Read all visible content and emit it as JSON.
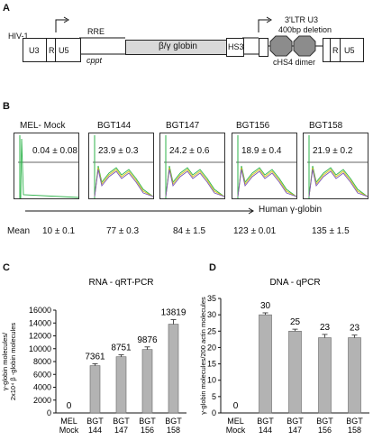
{
  "panels": {
    "a": "A",
    "b": "B",
    "c": "C",
    "d": "D"
  },
  "construct": {
    "hiv1": "HIV-1",
    "u3_left": "U3",
    "r_left": "R",
    "u5_left": "U5",
    "rre": "RRE",
    "cppt": "cppt",
    "globin": "β/γ globin",
    "hs3": "HS3",
    "ltr_line1": "3'LTR U3",
    "ltr_line2": "400bp deletion",
    "chs4": "cHS4 dimer",
    "r_right": "R",
    "u5_right": "U5"
  },
  "facs": {
    "samples": [
      {
        "name": "MEL- Mock",
        "value": "0.04 ± 0.08",
        "mean": "10 ± 0.1"
      },
      {
        "name": "BGT144",
        "value": "23.9 ± 0.3",
        "mean": "77 ± 0.3"
      },
      {
        "name": "BGT147",
        "value": "24.2 ± 0.6",
        "mean": "84 ± 1.5"
      },
      {
        "name": "BGT156",
        "value": "18.9 ± 0.4",
        "mean": "123 ± 0.01"
      },
      {
        "name": "BGT158",
        "value": "21.9 ± 0.2",
        "mean": "135 ± 1.5"
      }
    ],
    "axis_label": "Human γ-globin",
    "mean_label": "Mean"
  },
  "chart_data": [
    {
      "type": "bar",
      "title": "RNA - qRT-PCR",
      "ylabel_line1": "γ-globin molecules/",
      "ylabel_line2": "2x10⁴ β -globin molecules",
      "categories": [
        "MEL Mock",
        "BGT 144",
        "BGT 147",
        "BGT 156",
        "BGT 158"
      ],
      "category_lines": [
        [
          "MEL",
          "Mock"
        ],
        [
          "BGT",
          "144"
        ],
        [
          "BGT",
          "147"
        ],
        [
          "BGT",
          "156"
        ],
        [
          "BGT",
          "158"
        ]
      ],
      "values": [
        0,
        7361,
        8751,
        9876,
        13819
      ],
      "value_labels": [
        "0",
        "7361",
        "8751",
        "9876",
        "13819"
      ],
      "errors": [
        0,
        300,
        300,
        400,
        700
      ],
      "ylim": [
        0,
        16000
      ],
      "yticks": [
        "0",
        "2000",
        "4000",
        "6000",
        "8000",
        "10000",
        "12000",
        "14000",
        "16000"
      ]
    },
    {
      "type": "bar",
      "title": "DNA - qPCR",
      "ylabel_line1": "γ-globin molecules/200 actin molecules",
      "categories": [
        "MEL Mock",
        "BGT 144",
        "BGT 147",
        "BGT 156",
        "BGT 158"
      ],
      "category_lines": [
        [
          "MEL",
          "Mock"
        ],
        [
          "BGT",
          "144"
        ],
        [
          "BGT",
          "147"
        ],
        [
          "BGT",
          "156"
        ],
        [
          "BGT",
          "158"
        ]
      ],
      "values": [
        0,
        30,
        25,
        23,
        23
      ],
      "value_labels": [
        "0",
        "30",
        "25",
        "23",
        "23"
      ],
      "errors": [
        0,
        0.6,
        0.6,
        1.0,
        0.8
      ],
      "ylim": [
        0,
        35
      ],
      "yticks": [
        "0",
        "5",
        "10",
        "15",
        "20",
        "25",
        "30",
        "35"
      ]
    }
  ],
  "colors": {
    "bar": "#b3b3b3",
    "globin_box": "#d9d9d9",
    "octagon": "#8c8c8c",
    "histo_green": "#2db34a",
    "histo_yellow": "#d6c31e",
    "histo_purple": "#7a55b5"
  }
}
